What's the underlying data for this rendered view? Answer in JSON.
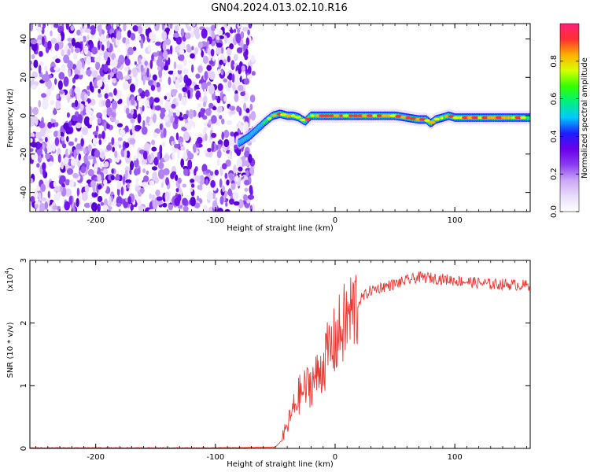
{
  "title": "GN04.2024.013.02.10.R16",
  "chart_data": [
    {
      "type": "heatmap",
      "xlabel": "Height of straight line (km)",
      "ylabel": "Frequency (Hz)",
      "xlim": [
        -255,
        163
      ],
      "ylim": [
        -50,
        48
      ],
      "xticks": [
        -200,
        -100,
        0,
        100
      ],
      "xtick_labels": [
        "-200",
        "-100",
        "0",
        "100"
      ],
      "yticks": [
        -40,
        -20,
        0,
        20,
        40
      ],
      "ytick_labels": [
        "-40",
        "-20",
        "0",
        "20",
        "40"
      ],
      "colorbar": {
        "label": "Normalized spectral amplitude",
        "range": [
          0,
          1
        ],
        "ticks": [
          0.0,
          0.2,
          0.4,
          0.6,
          0.8
        ],
        "tick_labels": [
          "0.0",
          "0.2",
          "0.4",
          "0.6",
          "0.8"
        ],
        "colors": [
          "#ffffff",
          "#e9dcfb",
          "#c9a7f5",
          "#8a3cf0",
          "#6a00e8",
          "#1e1eff",
          "#00c8ff",
          "#00f080",
          "#33ff00",
          "#d8ff00",
          "#ffb000",
          "#ff3030",
          "#ff1e78"
        ]
      },
      "noise_region_x": [
        -255,
        -72
      ],
      "ridge": {
        "x": [
          -80,
          -72,
          -65,
          -58,
          -52,
          -46,
          -40,
          -35,
          -30,
          -25,
          -20,
          -15,
          -10,
          -5,
          0,
          10,
          20,
          30,
          40,
          50,
          60,
          70,
          76,
          80,
          84,
          90,
          95,
          100,
          110,
          120,
          130,
          140,
          150,
          163
        ],
        "y": [
          -14,
          -11,
          -7,
          -3,
          0,
          1,
          0,
          0,
          -1,
          -3,
          0,
          0,
          0,
          0,
          0,
          0,
          0,
          0,
          0,
          0,
          -1,
          -2,
          -2,
          -4,
          -2,
          -1,
          0,
          -1,
          -1,
          -1,
          -1,
          -1,
          -1,
          -1
        ]
      }
    },
    {
      "type": "line",
      "xlabel": "Height of straight line (km)",
      "ylabel": "SNR (10 * v/v)",
      "scale_note": "(x10",
      "scale_exp": "4",
      "scale_close": ")",
      "xlim": [
        -255,
        163
      ],
      "ylim": [
        0,
        3.0
      ],
      "xticks": [
        -200,
        -100,
        0,
        100
      ],
      "xtick_labels": [
        "-200",
        "-100",
        "0",
        "100"
      ],
      "yticks": [
        0,
        1,
        2,
        3
      ],
      "ytick_labels": [
        "0",
        "1",
        "2",
        "3"
      ],
      "color": "#e8382f",
      "trend": {
        "x": [
          -255,
          -100,
          -50,
          -45,
          -40,
          -35,
          -30,
          -25,
          -20,
          -15,
          -10,
          -5,
          0,
          5,
          10,
          15,
          20,
          25,
          30,
          40,
          50,
          60,
          70,
          80,
          90,
          100,
          110,
          120,
          130,
          140,
          150,
          163
        ],
        "y": [
          0.01,
          0.01,
          0.02,
          0.12,
          0.35,
          0.62,
          0.85,
          0.95,
          1.05,
          1.15,
          1.35,
          1.55,
          1.7,
          1.9,
          2.05,
          2.2,
          2.35,
          2.45,
          2.52,
          2.58,
          2.62,
          2.68,
          2.73,
          2.72,
          2.7,
          2.68,
          2.66,
          2.64,
          2.62,
          2.62,
          2.61,
          2.6
        ]
      }
    }
  ]
}
